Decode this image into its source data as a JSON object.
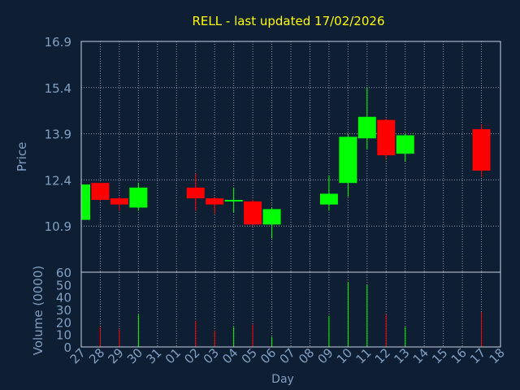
{
  "title": "RELL - last updated 17/02/2026",
  "colors": {
    "background": "#0e1e33",
    "title": "#ffff00",
    "axis_text": "#7fa0c4",
    "grid": "#ffffff",
    "up": "#00ff00",
    "down": "#ff0000"
  },
  "chart_data": [
    {
      "type": "candlestick",
      "title": "RELL - last updated 17/02/2026",
      "ylabel": "Price",
      "ylim": [
        9.4,
        16.9
      ],
      "yticks": [
        "16.9",
        "15.4",
        "13.9",
        "12.4",
        "10.9"
      ],
      "ytick_values": [
        16.9,
        15.4,
        13.9,
        12.4,
        10.9
      ],
      "grid": true,
      "categories": [
        "27",
        "28",
        "29",
        "30",
        "31",
        "01",
        "02",
        "03",
        "04",
        "05",
        "06",
        "07",
        "08",
        "09",
        "10",
        "11",
        "12",
        "13",
        "14",
        "15",
        "16",
        "17",
        "18"
      ],
      "candles": [
        {
          "x": "27",
          "open": 11.1,
          "close": 12.25,
          "high": 12.3,
          "low": 11.05
        },
        {
          "x": "28",
          "open": 12.3,
          "close": 11.75,
          "high": 12.3,
          "low": 11.7
        },
        {
          "x": "29",
          "open": 11.8,
          "close": 11.6,
          "high": 11.85,
          "low": 11.4
        },
        {
          "x": "30",
          "open": 11.5,
          "close": 12.15,
          "high": 12.3,
          "low": 11.4
        },
        {
          "x": "02",
          "open": 12.15,
          "close": 11.8,
          "high": 12.6,
          "low": 11.4
        },
        {
          "x": "03",
          "open": 11.8,
          "close": 11.6,
          "high": 11.85,
          "low": 11.3
        },
        {
          "x": "04",
          "open": 11.7,
          "close": 11.75,
          "high": 12.15,
          "low": 11.35
        },
        {
          "x": "05",
          "open": 11.7,
          "close": 10.95,
          "high": 11.75,
          "low": 10.9
        },
        {
          "x": "06",
          "open": 10.95,
          "close": 11.45,
          "high": 11.5,
          "low": 10.5
        },
        {
          "x": "09",
          "open": 11.6,
          "close": 11.95,
          "high": 12.55,
          "low": 11.4
        },
        {
          "x": "10",
          "open": 12.3,
          "close": 13.8,
          "high": 13.9,
          "low": 11.85
        },
        {
          "x": "11",
          "open": 13.75,
          "close": 14.45,
          "high": 15.4,
          "low": 13.4
        },
        {
          "x": "12",
          "open": 14.35,
          "close": 13.2,
          "high": 14.4,
          "low": 13.1
        },
        {
          "x": "13",
          "open": 13.25,
          "close": 13.85,
          "high": 13.9,
          "low": 13.0
        },
        {
          "x": "17",
          "open": 14.05,
          "close": 12.7,
          "high": 14.2,
          "low": 12.5
        }
      ]
    },
    {
      "type": "bar",
      "ylabel": "Volume (0000)",
      "xlabel": "Day",
      "ylim": [
        0,
        60
      ],
      "yticks": [
        "60",
        "50",
        "40",
        "30",
        "20",
        "10",
        "0"
      ],
      "ytick_values": [
        60,
        50,
        40,
        30,
        20,
        10,
        0
      ],
      "categories": [
        "27",
        "28",
        "29",
        "30",
        "31",
        "01",
        "02",
        "03",
        "04",
        "05",
        "06",
        "07",
        "08",
        "09",
        "10",
        "11",
        "12",
        "13",
        "14",
        "15",
        "16",
        "17",
        "18"
      ],
      "bars": [
        {
          "x": "28",
          "value": 16,
          "direction": "down"
        },
        {
          "x": "29",
          "value": 14,
          "direction": "down"
        },
        {
          "x": "30",
          "value": 26,
          "direction": "up"
        },
        {
          "x": "02",
          "value": 21,
          "direction": "down"
        },
        {
          "x": "03",
          "value": 13,
          "direction": "down"
        },
        {
          "x": "04",
          "value": 16,
          "direction": "up"
        },
        {
          "x": "05",
          "value": 18,
          "direction": "down"
        },
        {
          "x": "06",
          "value": 8,
          "direction": "up"
        },
        {
          "x": "09",
          "value": 25,
          "direction": "up"
        },
        {
          "x": "10",
          "value": 52,
          "direction": "up"
        },
        {
          "x": "11",
          "value": 50,
          "direction": "up"
        },
        {
          "x": "12",
          "value": 26,
          "direction": "down"
        },
        {
          "x": "13",
          "value": 16,
          "direction": "up"
        },
        {
          "x": "17",
          "value": 28,
          "direction": "down"
        }
      ]
    }
  ]
}
